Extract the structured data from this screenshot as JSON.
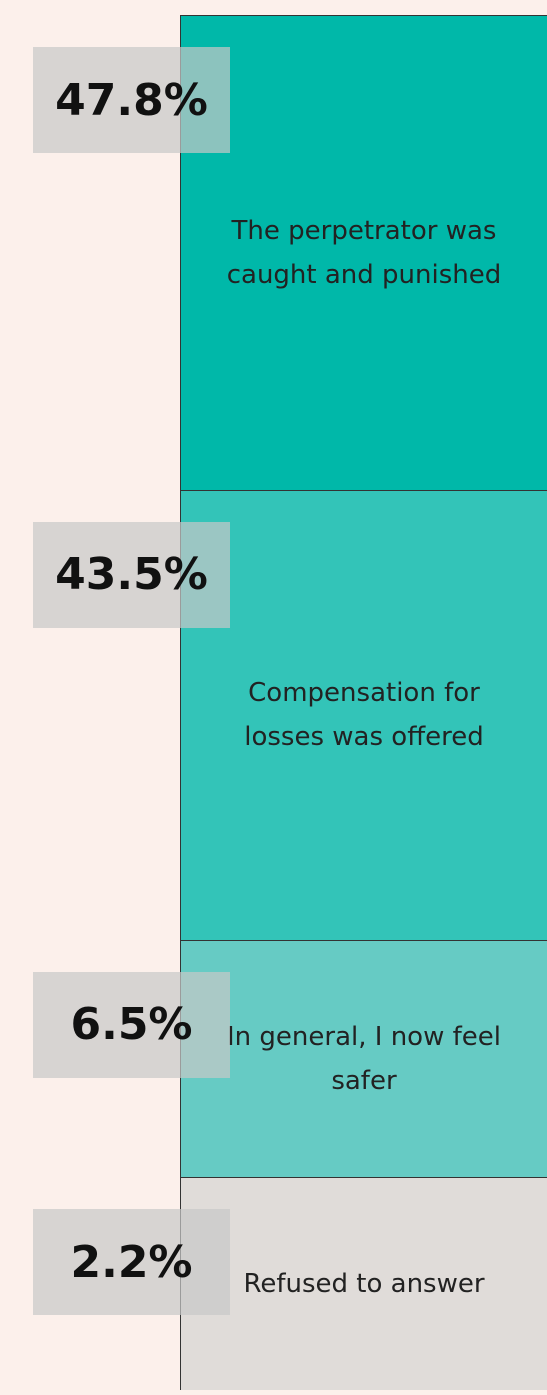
{
  "chart_data": {
    "type": "stacked-column",
    "categories": [
      "The perpetrator was caught and punished",
      "Compensation for losses was offered",
      "In general, I now feel safer",
      "Refused to answer"
    ],
    "values": [
      47.8,
      43.5,
      6.5,
      2.2
    ],
    "value_labels": [
      "47.8%",
      "43.5%",
      "6.5%",
      "2.2%"
    ],
    "colors": [
      "#00b8a9",
      "#33c4b8",
      "#66cbc4",
      "#e0dcd9"
    ]
  }
}
